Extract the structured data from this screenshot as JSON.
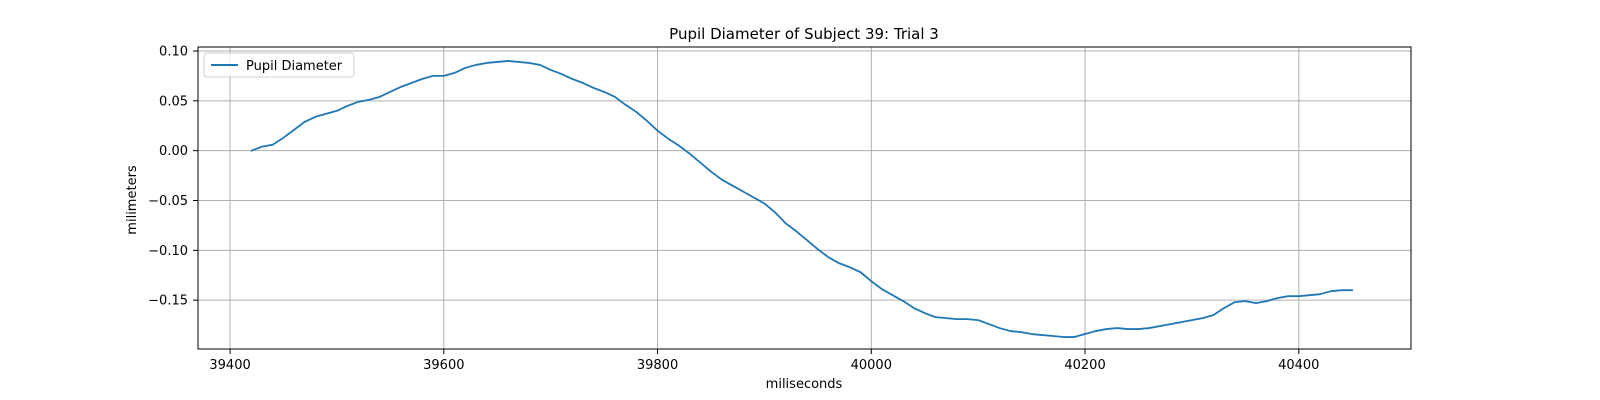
{
  "chart_data": {
    "type": "line",
    "title": "Pupil Diameter of Subject 39: Trial 3",
    "xlabel": "miliseconds",
    "ylabel": "milimeters",
    "xlim": [
      39370,
      40505
    ],
    "ylim": [
      -0.199,
      0.104
    ],
    "x_ticks": [
      39400,
      39600,
      39800,
      40000,
      40200,
      40400
    ],
    "x_tick_labels": [
      "39400",
      "39600",
      "39800",
      "40000",
      "40200",
      "40400"
    ],
    "y_ticks": [
      0.1,
      0.05,
      0.0,
      -0.05,
      -0.1,
      -0.15
    ],
    "y_tick_labels": [
      "0.10",
      "0.05",
      "0.00",
      "−0.05",
      "−0.10",
      "−0.15"
    ],
    "grid": true,
    "legend_position": "top-left",
    "series": [
      {
        "name": "Pupil Diameter",
        "color": "#1f77b4",
        "x": [
          39420,
          39430,
          39440,
          39450,
          39460,
          39470,
          39480,
          39490,
          39500,
          39510,
          39520,
          39530,
          39540,
          39550,
          39560,
          39570,
          39580,
          39590,
          39600,
          39610,
          39620,
          39630,
          39640,
          39650,
          39660,
          39670,
          39680,
          39690,
          39700,
          39710,
          39720,
          39730,
          39740,
          39750,
          39760,
          39770,
          39780,
          39790,
          39800,
          39810,
          39820,
          39830,
          39840,
          39850,
          39860,
          39870,
          39880,
          39890,
          39900,
          39910,
          39920,
          39930,
          39940,
          39950,
          39960,
          39970,
          39980,
          39990,
          40000,
          40010,
          40020,
          40030,
          40040,
          40050,
          40060,
          40070,
          40080,
          40090,
          40100,
          40110,
          40120,
          40130,
          40140,
          40150,
          40160,
          40170,
          40180,
          40190,
          40200,
          40210,
          40220,
          40230,
          40240,
          40250,
          40260,
          40270,
          40280,
          40290,
          40300,
          40310,
          40320,
          40330,
          40340,
          40350,
          40360,
          40370,
          40380,
          40390,
          40400,
          40410,
          40420,
          40430,
          40440,
          40450
        ],
        "y": [
          0.0,
          0.004,
          0.006,
          0.013,
          0.021,
          0.029,
          0.034,
          0.037,
          0.04,
          0.045,
          0.049,
          0.051,
          0.054,
          0.059,
          0.064,
          0.068,
          0.072,
          0.075,
          0.075,
          0.078,
          0.083,
          0.086,
          0.088,
          0.089,
          0.09,
          0.089,
          0.088,
          0.086,
          0.081,
          0.077,
          0.072,
          0.068,
          0.063,
          0.059,
          0.054,
          0.046,
          0.039,
          0.03,
          0.02,
          0.012,
          0.005,
          -0.003,
          -0.012,
          -0.021,
          -0.029,
          -0.035,
          -0.041,
          -0.047,
          -0.053,
          -0.062,
          -0.073,
          -0.081,
          -0.09,
          -0.099,
          -0.107,
          -0.113,
          -0.117,
          -0.122,
          -0.131,
          -0.139,
          -0.145,
          -0.151,
          -0.158,
          -0.163,
          -0.167,
          -0.168,
          -0.169,
          -0.169,
          -0.17,
          -0.174,
          -0.178,
          -0.181,
          -0.182,
          -0.184,
          -0.185,
          -0.186,
          -0.187,
          -0.187,
          -0.184,
          -0.181,
          -0.179,
          -0.178,
          -0.179,
          -0.179,
          -0.178,
          -0.176,
          -0.174,
          -0.172,
          -0.17,
          -0.168,
          -0.165,
          -0.158,
          -0.152,
          -0.151,
          -0.153,
          -0.151,
          -0.148,
          -0.146,
          -0.146,
          -0.145,
          -0.144,
          -0.141,
          -0.14,
          -0.14
        ]
      }
    ]
  }
}
